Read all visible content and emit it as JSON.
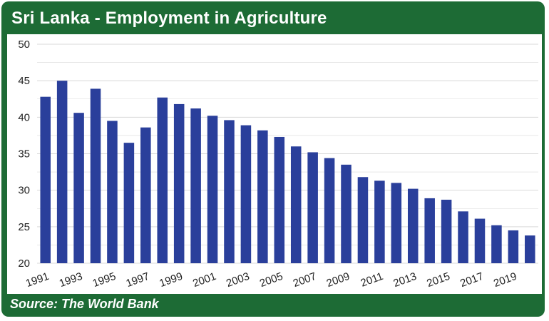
{
  "header": {
    "title": "Sri Lanka - Employment in Agriculture"
  },
  "footer": {
    "source": "Source: The World Bank"
  },
  "colors": {
    "frame": "#1d6b35",
    "bar": "#2a3f9b",
    "grid": "#d9d9d9",
    "text": "#222222"
  },
  "chart_data": {
    "type": "bar",
    "title": "Sri Lanka - Employment in Agriculture",
    "xlabel": "",
    "ylabel": "",
    "ylim": [
      20,
      50
    ],
    "yticks": [
      20,
      25,
      30,
      35,
      40,
      45,
      50
    ],
    "grid": true,
    "categories": [
      "1991",
      "1992",
      "1993",
      "1994",
      "1995",
      "1996",
      "1997",
      "1998",
      "1999",
      "2000",
      "2001",
      "2002",
      "2003",
      "2004",
      "2005",
      "2006",
      "2007",
      "2008",
      "2009",
      "2010",
      "2011",
      "2012",
      "2013",
      "2014",
      "2015",
      "2016",
      "2017",
      "2018",
      "2019",
      "2020"
    ],
    "x_tick_labels": [
      "1991",
      "1993",
      "1995",
      "1997",
      "1999",
      "2001",
      "2003",
      "2005",
      "2007",
      "2009",
      "2011",
      "2013",
      "2015",
      "2017",
      "2019"
    ],
    "values": [
      42.8,
      45.0,
      40.6,
      43.9,
      39.5,
      36.5,
      38.6,
      42.7,
      41.8,
      41.2,
      40.2,
      39.6,
      38.9,
      38.2,
      37.3,
      36.0,
      35.2,
      34.4,
      33.5,
      31.8,
      31.3,
      31.0,
      30.2,
      28.9,
      28.7,
      27.1,
      26.1,
      25.2,
      24.5,
      23.8
    ]
  }
}
